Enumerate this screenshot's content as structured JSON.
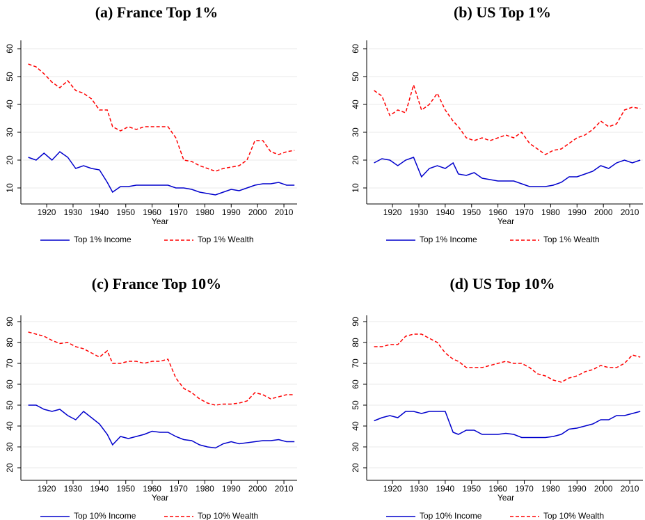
{
  "chart_data": [
    {
      "type": "line",
      "title": "(a) France Top 1%",
      "x_label": "Year",
      "x": [
        1913,
        1916,
        1919,
        1922,
        1925,
        1928,
        1931,
        1934,
        1937,
        1940,
        1943,
        1945,
        1948,
        1951,
        1954,
        1957,
        1960,
        1963,
        1966,
        1969,
        1972,
        1975,
        1978,
        1981,
        1984,
        1987,
        1990,
        1993,
        1996,
        1999,
        2002,
        2005,
        2008,
        2011,
        2014
      ],
      "xlim": [
        1911,
        2015
      ],
      "xticks": [
        1920,
        1930,
        1940,
        1950,
        1960,
        1970,
        1980,
        1990,
        2000,
        2010
      ],
      "ylim": [
        5,
        63
      ],
      "yticks": [
        10,
        20,
        30,
        40,
        50,
        60
      ],
      "grid": true,
      "series": [
        {
          "name": "Top 1% Income",
          "color": "#0000cc",
          "dashed": false,
          "values": [
            21,
            20,
            22.5,
            20,
            23,
            21,
            17,
            18,
            17,
            16.5,
            12,
            8.5,
            10.5,
            10.5,
            11,
            11,
            11,
            11,
            11,
            10,
            10,
            9.5,
            8.5,
            8,
            7.5,
            8.5,
            9.5,
            9,
            10,
            11,
            11.5,
            11.5,
            12,
            11,
            11
          ]
        },
        {
          "name": "Top 1% Wealth",
          "color": "#ff0000",
          "dashed": true,
          "values": [
            54.5,
            53.5,
            51,
            48,
            46,
            48.5,
            45,
            44,
            42,
            38,
            38,
            32,
            30.5,
            32,
            31,
            32,
            32,
            32,
            32,
            28,
            20,
            19.5,
            18,
            17,
            16,
            17,
            17.5,
            18,
            20,
            27,
            27,
            23,
            22,
            23,
            23.5
          ]
        }
      ]
    },
    {
      "type": "line",
      "title": "(b) US Top 1%",
      "x_label": "Year",
      "x": [
        1913,
        1916,
        1919,
        1922,
        1925,
        1928,
        1931,
        1934,
        1937,
        1940,
        1943,
        1945,
        1948,
        1951,
        1954,
        1957,
        1960,
        1963,
        1966,
        1969,
        1972,
        1975,
        1978,
        1981,
        1984,
        1987,
        1990,
        1993,
        1996,
        1999,
        2002,
        2005,
        2008,
        2011,
        2014
      ],
      "xlim": [
        1911,
        2015
      ],
      "xticks": [
        1920,
        1930,
        1940,
        1950,
        1960,
        1970,
        1980,
        1990,
        2000,
        2010
      ],
      "ylim": [
        5,
        63
      ],
      "yticks": [
        10,
        20,
        30,
        40,
        50,
        60
      ],
      "grid": true,
      "series": [
        {
          "name": "Top 1% Income",
          "color": "#0000cc",
          "dashed": false,
          "values": [
            19,
            20.5,
            20,
            18,
            20,
            21,
            14,
            17,
            18,
            17,
            19,
            15,
            14.5,
            15.5,
            13.5,
            13,
            12.5,
            12.5,
            12.5,
            11.5,
            10.5,
            10.5,
            10.5,
            11,
            12,
            14,
            14,
            15,
            16,
            18,
            17,
            19,
            20,
            19,
            20
          ]
        },
        {
          "name": "Top 1% Wealth",
          "color": "#ff0000",
          "dashed": true,
          "values": [
            45,
            43,
            36,
            38,
            37,
            47,
            38,
            40,
            44,
            38,
            34,
            32,
            28,
            27,
            28,
            27,
            28,
            29,
            28,
            30,
            26,
            24,
            22,
            23.5,
            24,
            26,
            28,
            29,
            31,
            34,
            32,
            33,
            38,
            39,
            38.5
          ]
        }
      ]
    },
    {
      "type": "line",
      "title": "(c) France Top 10%",
      "x_label": "Year",
      "x": [
        1913,
        1916,
        1919,
        1922,
        1925,
        1928,
        1931,
        1934,
        1937,
        1940,
        1943,
        1945,
        1948,
        1951,
        1954,
        1957,
        1960,
        1963,
        1966,
        1969,
        1972,
        1975,
        1978,
        1981,
        1984,
        1987,
        1990,
        1993,
        1996,
        1999,
        2002,
        2005,
        2008,
        2011,
        2014
      ],
      "xlim": [
        1911,
        2015
      ],
      "xticks": [
        1920,
        1930,
        1940,
        1950,
        1960,
        1970,
        1980,
        1990,
        2000,
        2010
      ],
      "ylim": [
        15,
        93
      ],
      "yticks": [
        20,
        30,
        40,
        50,
        60,
        70,
        80,
        90
      ],
      "grid": true,
      "series": [
        {
          "name": "Top 10% Income",
          "color": "#0000cc",
          "dashed": false,
          "values": [
            50,
            50,
            48,
            47,
            48,
            45,
            43,
            47,
            44,
            41,
            36,
            31,
            35,
            34,
            35,
            36,
            37.5,
            37,
            37,
            35,
            33.5,
            33,
            31,
            30,
            29.5,
            31.5,
            32.5,
            31.5,
            32,
            32.5,
            33,
            33,
            33.5,
            32.5,
            32.5
          ]
        },
        {
          "name": "Top 10% Wealth",
          "color": "#ff0000",
          "dashed": true,
          "values": [
            85,
            84,
            83,
            81,
            79.5,
            80,
            78,
            77,
            75,
            73,
            76,
            70,
            70,
            71,
            71,
            70,
            71,
            71,
            72,
            63,
            58,
            56,
            53,
            51,
            50,
            50.5,
            50.5,
            51,
            52,
            56,
            55,
            53,
            54,
            55,
            55
          ]
        }
      ]
    },
    {
      "type": "line",
      "title": "(d) US Top 10%",
      "x_label": "Year",
      "x": [
        1913,
        1916,
        1919,
        1922,
        1925,
        1928,
        1931,
        1934,
        1937,
        1940,
        1943,
        1945,
        1948,
        1951,
        1954,
        1957,
        1960,
        1963,
        1966,
        1969,
        1972,
        1975,
        1978,
        1981,
        1984,
        1987,
        1990,
        1993,
        1996,
        1999,
        2002,
        2005,
        2008,
        2011,
        2014
      ],
      "xlim": [
        1911,
        2015
      ],
      "xticks": [
        1920,
        1930,
        1940,
        1950,
        1960,
        1970,
        1980,
        1990,
        2000,
        2010
      ],
      "ylim": [
        15,
        93
      ],
      "yticks": [
        20,
        30,
        40,
        50,
        60,
        70,
        80,
        90
      ],
      "grid": true,
      "series": [
        {
          "name": "Top 10% Income",
          "color": "#0000cc",
          "dashed": false,
          "values": [
            42.5,
            44,
            45,
            44,
            47,
            47,
            46,
            47,
            47,
            47,
            37,
            36,
            38,
            38,
            36,
            36,
            36,
            36.5,
            36,
            34.5,
            34.5,
            34.5,
            34.5,
            35,
            36,
            38.5,
            39,
            40,
            41,
            43,
            43,
            45,
            45,
            46,
            47
          ]
        },
        {
          "name": "Top 10% Wealth",
          "color": "#ff0000",
          "dashed": true,
          "values": [
            78,
            78,
            79,
            79,
            83,
            84,
            84,
            82,
            80,
            75,
            72,
            71,
            68,
            68,
            68,
            69,
            70,
            71,
            70,
            70,
            68,
            65,
            64,
            62,
            61,
            63,
            64,
            66,
            67,
            69,
            68,
            68,
            70,
            74,
            73
          ]
        }
      ]
    }
  ]
}
